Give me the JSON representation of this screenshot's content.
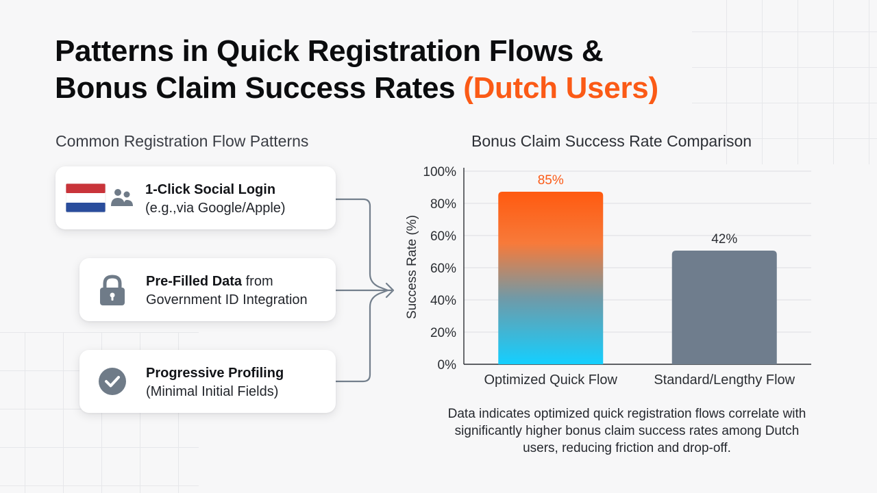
{
  "title": {
    "line1": "Patterns in Quick Registration Flows &",
    "line2_main": "Bonus Claim Success Rates",
    "line2_accent": "(Dutch Users)"
  },
  "left_section": {
    "heading": "Common Registration Flow Patterns",
    "cards": [
      {
        "icon": "netherlands-flag-and-users-icon",
        "bold": "1-Click Social Login",
        "rest": "",
        "line2": "(e.g.,via Google/Apple)"
      },
      {
        "icon": "lock-icon",
        "bold": "Pre-Filled Data",
        "rest": " from",
        "line2": "Government ID Integration"
      },
      {
        "icon": "checkmark-circle-icon",
        "bold": "Progressive Profiling",
        "rest": "",
        "line2": "(Minimal Initial Fields)"
      }
    ]
  },
  "colors": {
    "accent": "#fb5a16",
    "optimized_bar_top": "#ff5a10",
    "optimized_bar_bottom": "#14cfff",
    "standard_bar": "#6f7d8d"
  },
  "chart_data": {
    "type": "bar",
    "title": "Bonus Claim Success Rate Comparison",
    "ylabel": "Success Rate (%)",
    "xlabel": "",
    "categories": [
      "Optimized Quick Flow",
      "Standard/Lengthy Flow"
    ],
    "values": [
      85,
      42
    ],
    "data_labels": [
      "85%",
      "42%"
    ],
    "yticks": [
      "0%",
      "20%",
      "40%",
      "60%",
      "60%",
      "80%",
      "100%"
    ],
    "grid": true
  },
  "caption": "Data indicates optimized quick registration flows correlate with significantly higher bonus claim success rates among Dutch users, reducing friction and drop-off."
}
